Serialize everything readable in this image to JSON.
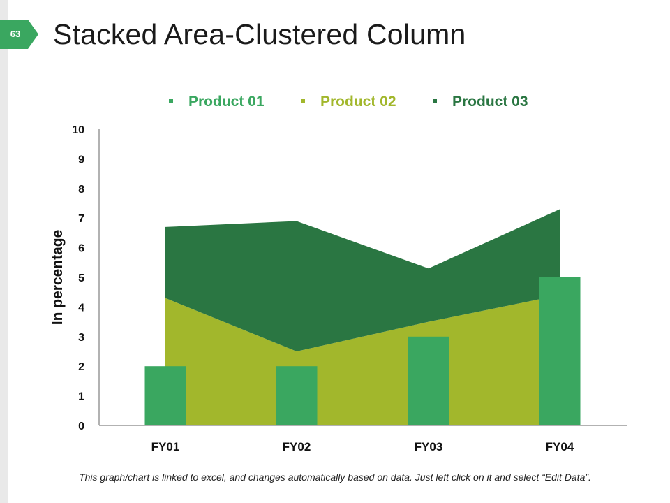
{
  "page_number": "63",
  "title": "Stacked Area-Clustered Column",
  "footnote": "This graph/chart is linked to excel, and changes automatically based on data. Just left click on it and select “Edit Data”.",
  "colors": {
    "product_01": "#3aa760",
    "product_02": "#a2b72c",
    "product_03": "#2a7642",
    "badge": "#3aa760",
    "legend_text_01": "#3aa760",
    "legend_text_02": "#a2b72c",
    "legend_text_03": "#2a7642"
  },
  "chart_data": {
    "type": "bar",
    "subtype": "stacked-area-clustered-column",
    "categories": [
      "FY01",
      "FY02",
      "FY03",
      "FY04"
    ],
    "series": [
      {
        "name": "Product 01",
        "render": "column",
        "values": [
          2,
          2,
          3,
          5
        ]
      },
      {
        "name": "Product 02",
        "render": "stacked-area",
        "values": [
          4.3,
          2.5,
          3.5,
          4.4
        ]
      },
      {
        "name": "Product 03",
        "render": "stacked-area",
        "values": [
          2.4,
          4.4,
          1.8,
          2.9
        ]
      }
    ],
    "ylabel": "In percentage",
    "xlabel": "",
    "ylim": [
      0,
      10
    ],
    "yticks": [
      0,
      1,
      2,
      3,
      4,
      5,
      6,
      7,
      8,
      9,
      10
    ],
    "grid": false,
    "legend_position": "top"
  }
}
